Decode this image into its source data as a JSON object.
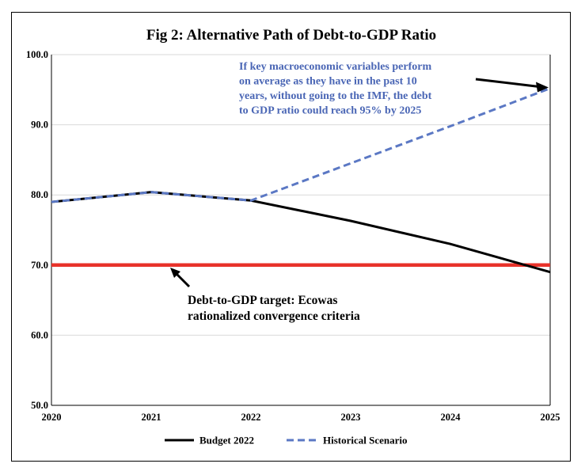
{
  "chart_data": {
    "type": "line",
    "title": "Fig 2: Alternative Path of Debt-to-GDP Ratio",
    "xlabel": "",
    "ylabel": "",
    "x": [
      "2020",
      "2021",
      "2022",
      "2023",
      "2024",
      "2025"
    ],
    "ylim": [
      50,
      100
    ],
    "yticks": [
      "100.0",
      "90.0",
      "80.0",
      "70.0",
      "60.0",
      "50.0"
    ],
    "grid": true,
    "legend_position": "bottom",
    "series": [
      {
        "name": "Budget 2022",
        "values": [
          79.0,
          80.4,
          79.2,
          76.3,
          73.0,
          69.0
        ],
        "color": "#000000",
        "style": "solid"
      },
      {
        "name": "Historical Scenario",
        "values": [
          79.0,
          80.4,
          79.2,
          84.5,
          89.8,
          95.2
        ],
        "color": "#5b78c4",
        "style": "dashed"
      }
    ],
    "target_line": {
      "value": 70,
      "color": "#e8322a"
    },
    "annotations": [
      {
        "id": "historical-note",
        "lines": [
          "If key macroeconomic variables perform",
          "on average as they have in the past 10",
          "years, without going to the IMF, the debt",
          "to GDP ratio could reach 95% by 2025"
        ],
        "color": "#4a66b5"
      },
      {
        "id": "target-note",
        "lines": [
          "Debt-to-GDP target: Ecowas",
          "rationalized convergence criteria"
        ],
        "color": "#000000"
      }
    ]
  }
}
